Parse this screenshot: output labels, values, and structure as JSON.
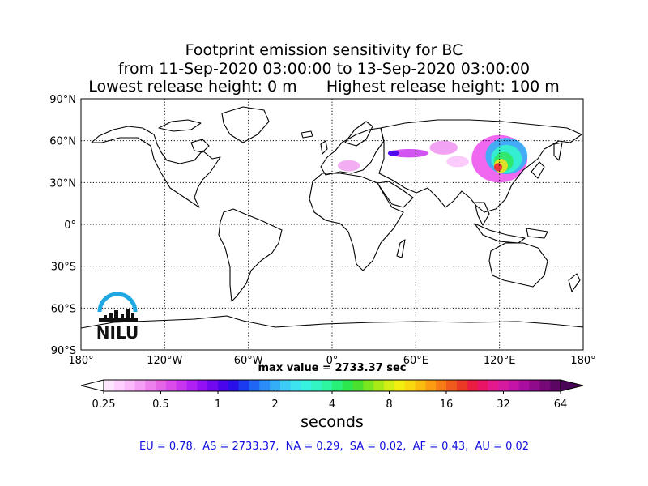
{
  "title": {
    "line1": "Footprint emission sensitivity for BC",
    "line2": "from 11-Sep-2020 03:00:00 to 13-Sep-2020 03:00:00",
    "line3_left": "Lowest release height: 0 m",
    "line3_right": "Highest release height: 100 m"
  },
  "map": {
    "lat_ticks": [
      {
        "lat": 90,
        "label": "90°N"
      },
      {
        "lat": 60,
        "label": "60°N"
      },
      {
        "lat": 30,
        "label": "30°N"
      },
      {
        "lat": 0,
        "label": "0°"
      },
      {
        "lat": -30,
        "label": "30°S"
      },
      {
        "lat": -60,
        "label": "60°S"
      },
      {
        "lat": -90,
        "label": "90°S"
      }
    ],
    "lon_ticks": [
      {
        "lon": -180,
        "label": "180°"
      },
      {
        "lon": -120,
        "label": "120°W"
      },
      {
        "lon": -60,
        "label": "60°W"
      },
      {
        "lon": 0,
        "label": "0°"
      },
      {
        "lon": 60,
        "label": "60°E"
      },
      {
        "lon": 120,
        "label": "120°E"
      },
      {
        "lon": 180,
        "label": "180°"
      }
    ],
    "logo_text": "NILU",
    "colors": {
      "coast": "#000000",
      "grid": "#000000",
      "logo_arc": "#1ea7e1",
      "logo_text": "#111111"
    }
  },
  "max_value_text": "max value = 2733.37 sec",
  "colorbar": {
    "tick_labels": [
      "0.25",
      "0.5",
      "1",
      "2",
      "4",
      "8",
      "16",
      "32",
      "64"
    ],
    "unit_label": "seconds",
    "colors": [
      "#ffe6ff",
      "#ffd0ff",
      "#fbb8fb",
      "#f59ef5",
      "#ee80ee",
      "#e664e6",
      "#d94bea",
      "#c836f0",
      "#b020f5",
      "#9310f5",
      "#7008f0",
      "#4a05ec",
      "#2a10e8",
      "#1a3bf0",
      "#1f66f5",
      "#2a8cf7",
      "#33aef7",
      "#3cccf5",
      "#3de4ef",
      "#38f2e0",
      "#33f5c4",
      "#2ef5a0",
      "#29f078",
      "#2ce84e",
      "#4ae030",
      "#7ae620",
      "#a8ea18",
      "#d2ee14",
      "#f2ee10",
      "#fad810",
      "#fbbc10",
      "#fa9d12",
      "#f67c16",
      "#f05a1c",
      "#ea3a26",
      "#ea1c40",
      "#ea1466",
      "#e41a8c",
      "#d61aa0",
      "#c414a8",
      "#aa0ea0",
      "#900a8c",
      "#760878",
      "#5c0664"
    ]
  },
  "footprint": {
    "blobs": [
      {
        "lon": 120,
        "lat": 47,
        "rlon": 20,
        "rlat": 17,
        "color": "#ee60ee"
      },
      {
        "lon": 125,
        "lat": 49,
        "rlon": 15,
        "rlat": 13,
        "color": "#3ab0f5"
      },
      {
        "lon": 125,
        "lat": 47,
        "rlon": 11,
        "rlat": 10,
        "color": "#35f0d0"
      },
      {
        "lon": 123,
        "lat": 45,
        "rlon": 7,
        "rlat": 7,
        "color": "#2ee86a"
      },
      {
        "lon": 121,
        "lat": 42,
        "rlon": 5,
        "rlat": 5,
        "color": "#e6e020"
      },
      {
        "lon": 119,
        "lat": 41,
        "rlon": 3,
        "rlat": 3,
        "color": "#ea3040"
      },
      {
        "lon": 55,
        "lat": 51,
        "rlon": 14,
        "rlat": 3,
        "color": "#d04cf0"
      },
      {
        "lon": 44,
        "lat": 51,
        "rlon": 4,
        "rlat": 2,
        "color": "#4a05ec"
      },
      {
        "lon": 80,
        "lat": 55,
        "rlon": 10,
        "rlat": 5,
        "color": "#f29ef2"
      },
      {
        "lon": 12,
        "lat": 42,
        "rlon": 8,
        "rlat": 4,
        "color": "#f2aaf2"
      },
      {
        "lon": 90,
        "lat": 45,
        "rlon": 8,
        "rlat": 4,
        "color": "#fbc8fb"
      }
    ]
  },
  "regions_text": "EU = 0.78,  AS = 2733.37,  NA = 0.29,  SA = 0.02,  AF = 0.43,  AU = 0.02"
}
